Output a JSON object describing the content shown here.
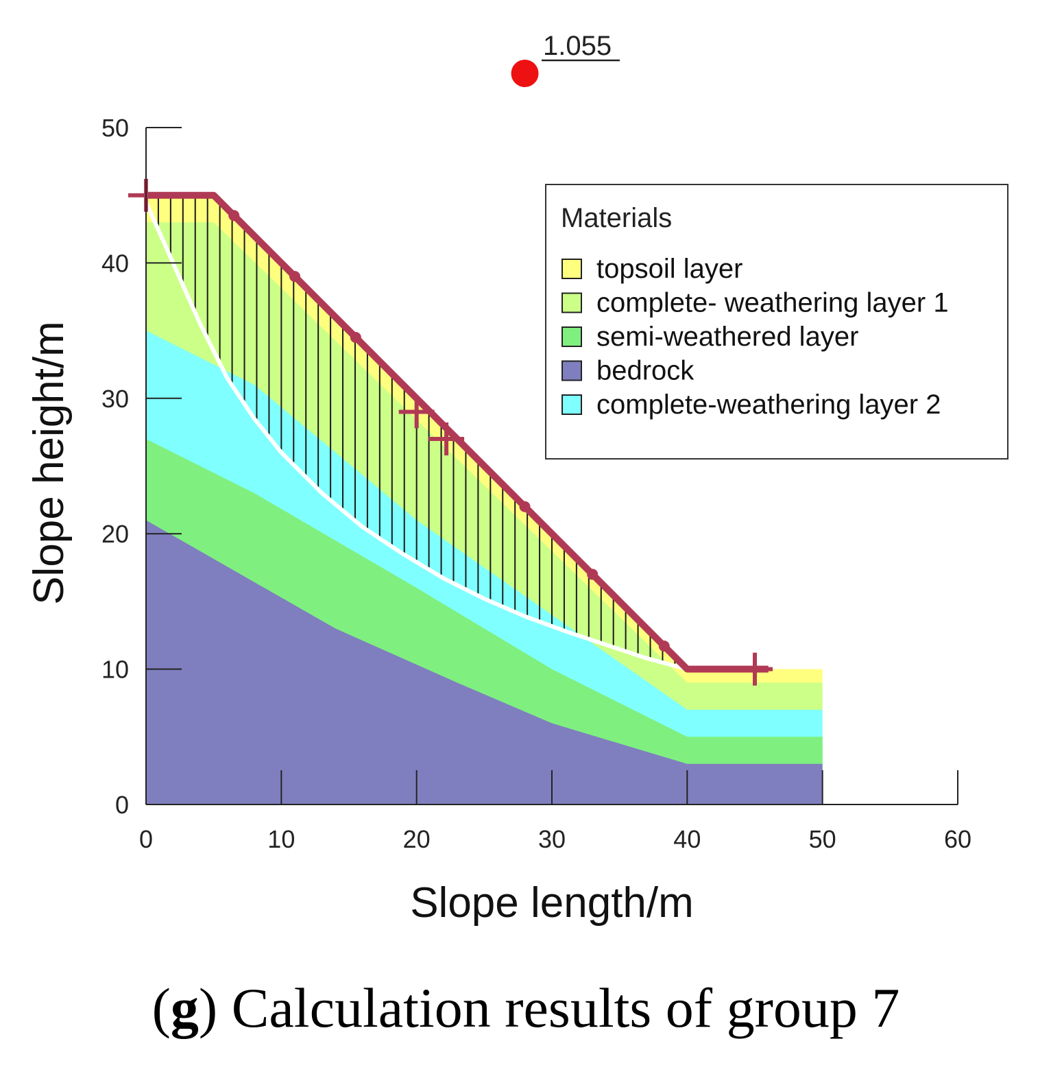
{
  "factor_of_safety": "1.055",
  "x_axis": {
    "title": "Slope length/m",
    "range": [
      0,
      60
    ],
    "ticks": [
      0,
      10,
      20,
      30,
      40,
      50,
      60
    ]
  },
  "y_axis": {
    "title": "Slope height/m",
    "range": [
      0,
      50
    ],
    "ticks": [
      0,
      10,
      20,
      30,
      40,
      50
    ]
  },
  "legend": {
    "title": "Materials",
    "items": [
      {
        "label": "topsoil layer",
        "color": "#ffff7f"
      },
      {
        "label": "complete- weathering layer 1",
        "color": "#ccff88"
      },
      {
        "label": "semi-weathered layer",
        "color": "#7ff07f"
      },
      {
        "label": "bedrock",
        "color": "#7f7fbf"
      },
      {
        "label": "complete-weathering layer 2",
        "color": "#7fffff"
      }
    ]
  },
  "layers": [
    {
      "name": "topsoil layer",
      "color": "#ffff7f",
      "boundary": [
        [
          0,
          45
        ],
        [
          5,
          45
        ],
        [
          40,
          10
        ],
        [
          50,
          10
        ]
      ]
    },
    {
      "name": "complete- weathering layer 1",
      "color": "#ccff88",
      "boundary": [
        [
          0,
          43
        ],
        [
          5,
          43
        ],
        [
          40,
          9
        ],
        [
          50,
          9
        ]
      ]
    },
    {
      "name": "complete-weathering layer 2",
      "color": "#7fffff",
      "boundary": [
        [
          0,
          35
        ],
        [
          8,
          31
        ],
        [
          20,
          21
        ],
        [
          30,
          14
        ],
        [
          40,
          7
        ],
        [
          50,
          7
        ]
      ]
    },
    {
      "name": "semi-weathered layer",
      "color": "#7ff07f",
      "boundary": [
        [
          0,
          27
        ],
        [
          8,
          23
        ],
        [
          20,
          16
        ],
        [
          30,
          10
        ],
        [
          40,
          5
        ],
        [
          50,
          5
        ]
      ]
    },
    {
      "name": "bedrock",
      "color": "#7f7fbf",
      "boundary": [
        [
          0,
          21
        ],
        [
          14,
          13
        ],
        [
          23,
          9
        ],
        [
          30,
          6
        ],
        [
          40,
          3
        ],
        [
          50,
          3
        ]
      ]
    }
  ],
  "ground_surface": [
    [
      0,
      45
    ],
    [
      5,
      45
    ],
    [
      40,
      10
    ],
    [
      46,
      10
    ]
  ],
  "slip_surface": [
    [
      0,
      44.5
    ],
    [
      2,
      40
    ],
    [
      4,
      35.5
    ],
    [
      6,
      31.5
    ],
    [
      8,
      28.5
    ],
    [
      10,
      26
    ],
    [
      13,
      23
    ],
    [
      16,
      20.5
    ],
    [
      19,
      18.5
    ],
    [
      22,
      16.7
    ],
    [
      25,
      15.2
    ],
    [
      28,
      13.9
    ],
    [
      31,
      12.8
    ],
    [
      34,
      11.8
    ],
    [
      37,
      10.8
    ],
    [
      40,
      10
    ]
  ],
  "slip_center": [
    28,
    54
  ],
  "cross_markers": [
    [
      0,
      45
    ],
    [
      20,
      29
    ],
    [
      22.2,
      27
    ],
    [
      45,
      10
    ]
  ],
  "caption": {
    "label": "g",
    "text": "Calculation results of group 7"
  },
  "colors": {
    "surface_line": "#b03a55",
    "slip_surface": "#ffffff",
    "slip_center": "#ee1111",
    "axis": "#222222"
  }
}
